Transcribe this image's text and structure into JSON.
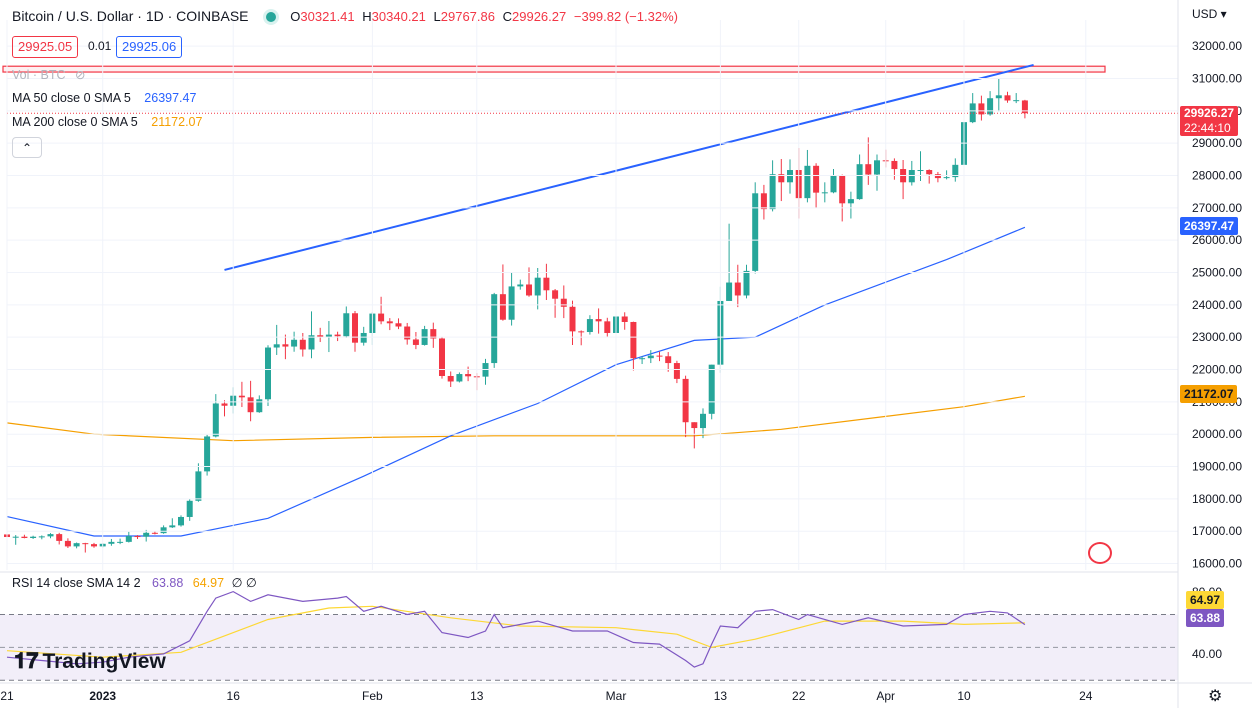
{
  "header": {
    "title": "Bitcoin / U.S. Dollar · 1D · COINBASE",
    "ohlc": [
      {
        "k": "O",
        "v": "30321.41"
      },
      {
        "k": "H",
        "v": "30340.21"
      },
      {
        "k": "L",
        "v": "29767.86"
      },
      {
        "k": "C",
        "v": "29926.27"
      }
    ],
    "change": "−399.82 (−1.32%)",
    "sell_price": "29925.05",
    "spread": "0.01",
    "buy_price": "29925.06"
  },
  "indicators": {
    "vol": "Vol · BTC",
    "ma50_label": "MA 50 close 0 SMA 5",
    "ma50_value": "26397.47",
    "ma200_label": "MA 200 close 0 SMA 5",
    "ma200_value": "21172.07",
    "collapse": "⌃",
    "rsi_label": "RSI 14 close SMA 14 2",
    "rsi_value": "63.88",
    "rsi_sma_value": "64.97",
    "rsi_extra": "∅  ∅"
  },
  "price_axis": {
    "currency": "USD",
    "last_price": "29926.27",
    "countdown": "22:44:10",
    "ma50_tag": "26397.47",
    "ma200_tag": "21172.07",
    "rsi_tick_top": "80.00",
    "rsi_tick_bottom": "40.00",
    "rsi_tag": "63.88",
    "rsi_sma_tag": "64.97"
  },
  "branding": {
    "logo_text": "TradingView"
  },
  "colors": {
    "up": "#26a69a",
    "down": "#f23645",
    "ma50": "#2962ff",
    "ma200": "#f59f00",
    "trendline": "#2962ff",
    "rsi": "#7e57c2",
    "rsi_sma": "#fdd835",
    "resistance": "#f23645"
  },
  "chart_data": {
    "type": "candlestick",
    "title": "Bitcoin / U.S. Dollar · 1D · COINBASE",
    "ylim": [
      15800,
      32500
    ],
    "y_ticks": [
      16000,
      17000,
      18000,
      19000,
      20000,
      21000,
      22000,
      23000,
      24000,
      25000,
      26000,
      27000,
      28000,
      29000,
      30000,
      31000,
      32000
    ],
    "x_ticks": [
      {
        "date": "2022-12-21",
        "label": "21"
      },
      {
        "date": "2023-01-01",
        "label": "2023"
      },
      {
        "date": "2023-01-16",
        "label": "16"
      },
      {
        "date": "2023-02-01",
        "label": "Feb"
      },
      {
        "date": "2023-02-13",
        "label": "13"
      },
      {
        "date": "2023-03-01",
        "label": "Mar"
      },
      {
        "date": "2023-03-13",
        "label": "13"
      },
      {
        "date": "2023-03-22",
        "label": "22"
      },
      {
        "date": "2023-04-01",
        "label": "Apr"
      },
      {
        "date": "2023-04-10",
        "label": "10"
      },
      {
        "date": "2023-04-24",
        "label": "24"
      }
    ],
    "x_start": "2022-12-21",
    "ohlc": [
      [
        "2022-12-21",
        16900,
        16930,
        16790,
        16820
      ],
      [
        "2022-12-22",
        16820,
        16880,
        16580,
        16830
      ],
      [
        "2022-12-23",
        16830,
        16890,
        16780,
        16790
      ],
      [
        "2022-12-24",
        16790,
        16860,
        16760,
        16830
      ],
      [
        "2022-12-25",
        16830,
        16870,
        16750,
        16840
      ],
      [
        "2022-12-26",
        16840,
        16940,
        16780,
        16910
      ],
      [
        "2022-12-27",
        16910,
        16950,
        16590,
        16700
      ],
      [
        "2022-12-28",
        16700,
        16780,
        16480,
        16530
      ],
      [
        "2022-12-29",
        16530,
        16650,
        16470,
        16630
      ],
      [
        "2022-12-30",
        16630,
        16640,
        16340,
        16600
      ],
      [
        "2022-12-31",
        16600,
        16640,
        16490,
        16530
      ],
      [
        "2023-01-01",
        16530,
        16630,
        16500,
        16610
      ],
      [
        "2023-01-02",
        16610,
        16760,
        16550,
        16670
      ],
      [
        "2023-01-03",
        16670,
        16770,
        16600,
        16670
      ],
      [
        "2023-01-04",
        16670,
        16980,
        16650,
        16850
      ],
      [
        "2023-01-05",
        16850,
        16880,
        16760,
        16830
      ],
      [
        "2023-01-06",
        16830,
        17040,
        16680,
        16950
      ],
      [
        "2023-01-07",
        16950,
        16990,
        16900,
        16940
      ],
      [
        "2023-01-08",
        16940,
        17180,
        16920,
        17120
      ],
      [
        "2023-01-09",
        17120,
        17400,
        17100,
        17180
      ],
      [
        "2023-01-10",
        17180,
        17490,
        17140,
        17440
      ],
      [
        "2023-01-11",
        17440,
        17990,
        17320,
        17940
      ],
      [
        "2023-01-12",
        17940,
        19100,
        17910,
        18850
      ],
      [
        "2023-01-13",
        18850,
        19980,
        18720,
        19930
      ],
      [
        "2023-01-14",
        19930,
        21240,
        19900,
        20950
      ],
      [
        "2023-01-15",
        20950,
        21050,
        20550,
        20880
      ],
      [
        "2023-01-16",
        20880,
        21450,
        20640,
        21190
      ],
      [
        "2023-01-17",
        21190,
        21620,
        20840,
        21140
      ],
      [
        "2023-01-18",
        21140,
        21650,
        20400,
        20680
      ],
      [
        "2023-01-19",
        20680,
        21200,
        20660,
        21080
      ],
      [
        "2023-01-20",
        21080,
        22750,
        20870,
        22680
      ],
      [
        "2023-01-21",
        22680,
        23380,
        22450,
        22780
      ],
      [
        "2023-01-22",
        22780,
        23080,
        22320,
        22710
      ],
      [
        "2023-01-23",
        22710,
        23170,
        22550,
        22920
      ],
      [
        "2023-01-24",
        22920,
        23130,
        22400,
        22620
      ],
      [
        "2023-01-25",
        22620,
        23800,
        22350,
        23060
      ],
      [
        "2023-01-26",
        23060,
        23290,
        22850,
        23010
      ],
      [
        "2023-01-27",
        23010,
        23500,
        22540,
        23080
      ],
      [
        "2023-01-28",
        23080,
        23170,
        22880,
        23030
      ],
      [
        "2023-01-29",
        23030,
        23950,
        22980,
        23740
      ],
      [
        "2023-01-30",
        23740,
        23810,
        22550,
        22830
      ],
      [
        "2023-01-31",
        22830,
        23320,
        22740,
        23130
      ],
      [
        "2023-02-01",
        23130,
        23780,
        22760,
        23730
      ],
      [
        "2023-02-02",
        23730,
        24250,
        23400,
        23490
      ],
      [
        "2023-02-03",
        23490,
        23590,
        23220,
        23430
      ],
      [
        "2023-02-04",
        23430,
        23580,
        23250,
        23330
      ],
      [
        "2023-02-05",
        23330,
        23440,
        22770,
        22930
      ],
      [
        "2023-02-06",
        22930,
        23160,
        22630,
        22760
      ],
      [
        "2023-02-07",
        22760,
        23350,
        22740,
        23250
      ],
      [
        "2023-02-08",
        23250,
        23450,
        22670,
        22960
      ],
      [
        "2023-02-09",
        22960,
        23010,
        21720,
        21800
      ],
      [
        "2023-02-10",
        21800,
        21940,
        21460,
        21630
      ],
      [
        "2023-02-11",
        21630,
        21910,
        21600,
        21860
      ],
      [
        "2023-02-12",
        21860,
        22090,
        21640,
        21790
      ],
      [
        "2023-02-13",
        21790,
        21890,
        21360,
        21780
      ],
      [
        "2023-02-14",
        21780,
        22330,
        21530,
        22200
      ],
      [
        "2023-02-15",
        22200,
        24370,
        22050,
        24330
      ],
      [
        "2023-02-16",
        24330,
        25250,
        23510,
        23540
      ],
      [
        "2023-02-17",
        23540,
        24990,
        23360,
        24570
      ],
      [
        "2023-02-18",
        24570,
        24780,
        24470,
        24630
      ],
      [
        "2023-02-19",
        24630,
        25160,
        24250,
        24290
      ],
      [
        "2023-02-20",
        24290,
        25140,
        23860,
        24840
      ],
      [
        "2023-02-21",
        24840,
        25270,
        24150,
        24450
      ],
      [
        "2023-02-22",
        24450,
        24490,
        23600,
        24190
      ],
      [
        "2023-02-23",
        24190,
        24600,
        23590,
        23940
      ],
      [
        "2023-02-24",
        23940,
        24130,
        22760,
        23180
      ],
      [
        "2023-02-25",
        23180,
        23210,
        22750,
        23160
      ],
      [
        "2023-02-26",
        23160,
        23680,
        23080,
        23560
      ],
      [
        "2023-02-27",
        23560,
        23890,
        23110,
        23490
      ],
      [
        "2023-02-28",
        23490,
        23600,
        23020,
        23130
      ],
      [
        "2023-03-01",
        23130,
        23990,
        23030,
        23640
      ],
      [
        "2023-03-02",
        23640,
        23770,
        23230,
        23470
      ],
      [
        "2023-03-03",
        23470,
        23480,
        21970,
        22350
      ],
      [
        "2023-03-04",
        22350,
        22410,
        22170,
        22350
      ],
      [
        "2023-03-05",
        22350,
        22600,
        22200,
        22430
      ],
      [
        "2023-03-06",
        22430,
        22550,
        22260,
        22410
      ],
      [
        "2023-03-07",
        22410,
        22540,
        21930,
        22200
      ],
      [
        "2023-03-08",
        22200,
        22270,
        21580,
        21710
      ],
      [
        "2023-03-09",
        21710,
        21810,
        19910,
        20370
      ],
      [
        "2023-03-10",
        20370,
        20370,
        19560,
        20190
      ],
      [
        "2023-03-11",
        20190,
        20800,
        19880,
        20630
      ],
      [
        "2023-03-12",
        20630,
        22150,
        20460,
        22150
      ],
      [
        "2023-03-13",
        22150,
        24560,
        21900,
        24120
      ],
      [
        "2023-03-14",
        24120,
        26510,
        24120,
        24690
      ],
      [
        "2023-03-15",
        24690,
        25240,
        23930,
        24290
      ],
      [
        "2023-03-16",
        24290,
        25240,
        24200,
        25050
      ],
      [
        "2023-03-17",
        25050,
        27790,
        24970,
        27450
      ],
      [
        "2023-03-18",
        27450,
        27710,
        26640,
        26960
      ],
      [
        "2023-03-19",
        26960,
        28470,
        26890,
        28040
      ],
      [
        "2023-03-20",
        28040,
        28510,
        27210,
        27790
      ],
      [
        "2023-03-21",
        27790,
        28500,
        27440,
        28170
      ],
      [
        "2023-03-22",
        28170,
        28850,
        26670,
        27300
      ],
      [
        "2023-03-23",
        27300,
        28790,
        27170,
        28300
      ],
      [
        "2023-03-24",
        28300,
        28380,
        27000,
        27470
      ],
      [
        "2023-03-25",
        27470,
        27790,
        27170,
        27480
      ],
      [
        "2023-03-26",
        27480,
        28200,
        27450,
        27990
      ],
      [
        "2023-03-27",
        27990,
        28030,
        26580,
        27140
      ],
      [
        "2023-03-28",
        27140,
        27500,
        26670,
        27270
      ],
      [
        "2023-03-29",
        27270,
        28650,
        27250,
        28350
      ],
      [
        "2023-03-30",
        28350,
        29180,
        27710,
        28030
      ],
      [
        "2023-03-31",
        28030,
        28650,
        27530,
        28470
      ],
      [
        "2023-04-01",
        28470,
        28800,
        28250,
        28450
      ],
      [
        "2023-04-02",
        28450,
        28530,
        27870,
        28200
      ],
      [
        "2023-04-03",
        28200,
        28480,
        27270,
        27790
      ],
      [
        "2023-04-04",
        27790,
        28450,
        27690,
        28170
      ],
      [
        "2023-04-05",
        28170,
        28750,
        27830,
        28170
      ],
      [
        "2023-04-06",
        28170,
        28190,
        27750,
        28040
      ],
      [
        "2023-04-07",
        28040,
        28110,
        27790,
        27920
      ],
      [
        "2023-04-08",
        27920,
        28160,
        27880,
        27950
      ],
      [
        "2023-04-09",
        27950,
        28530,
        27810,
        28330
      ],
      [
        "2023-04-10",
        28330,
        29770,
        28170,
        29650
      ],
      [
        "2023-04-11",
        29650,
        30550,
        29620,
        30230
      ],
      [
        "2023-04-12",
        30230,
        30470,
        29700,
        29890
      ],
      [
        "2023-04-13",
        29890,
        30610,
        29850,
        30390
      ],
      [
        "2023-04-14",
        30390,
        31000,
        29980,
        30480
      ],
      [
        "2023-04-15",
        30480,
        30590,
        30250,
        30320
      ],
      [
        "2023-04-16",
        30320,
        30550,
        30240,
        30330
      ],
      [
        "2023-04-17",
        30321.41,
        30340.21,
        29767.86,
        29926.27
      ]
    ],
    "ma50": [
      [
        "2022-12-21",
        17450
      ],
      [
        "2022-12-31",
        16850
      ],
      [
        "2023-01-10",
        16850
      ],
      [
        "2023-01-20",
        17400
      ],
      [
        "2023-01-31",
        18700
      ],
      [
        "2023-02-10",
        19950
      ],
      [
        "2023-02-20",
        20950
      ],
      [
        "2023-03-01",
        22150
      ],
      [
        "2023-03-10",
        22900
      ],
      [
        "2023-03-17",
        23000
      ],
      [
        "2023-03-25",
        24000
      ],
      [
        "2023-04-01",
        24700
      ],
      [
        "2023-04-08",
        25400
      ],
      [
        "2023-04-17",
        26397.47
      ]
    ],
    "ma200": [
      [
        "2022-12-21",
        20350
      ],
      [
        "2022-12-31",
        20000
      ],
      [
        "2023-01-16",
        19800
      ],
      [
        "2023-02-01",
        19900
      ],
      [
        "2023-02-15",
        19950
      ],
      [
        "2023-03-01",
        19950
      ],
      [
        "2023-03-10",
        19950
      ],
      [
        "2023-03-20",
        20150
      ],
      [
        "2023-04-01",
        20550
      ],
      [
        "2023-04-10",
        20850
      ],
      [
        "2023-04-17",
        21172.07
      ]
    ],
    "trendline": [
      [
        "2023-01-15",
        25080
      ],
      [
        "2023-04-18",
        31420
      ]
    ],
    "resistance": [
      31200,
      31380
    ],
    "rsi": {
      "ylim": [
        35,
        88
      ],
      "bands": [
        30,
        70
      ],
      "values": [
        [
          "2022-12-21",
          44
        ],
        [
          "2022-12-25",
          42
        ],
        [
          "2022-12-29",
          40
        ],
        [
          "2023-01-01",
          41
        ],
        [
          "2023-01-04",
          44
        ],
        [
          "2023-01-08",
          46
        ],
        [
          "2023-01-11",
          54
        ],
        [
          "2023-01-13",
          72
        ],
        [
          "2023-01-14",
          80
        ],
        [
          "2023-01-16",
          84
        ],
        [
          "2023-01-18",
          78
        ],
        [
          "2023-01-20",
          82
        ],
        [
          "2023-01-24",
          78
        ],
        [
          "2023-01-28",
          80
        ],
        [
          "2023-01-29",
          81
        ],
        [
          "2023-01-31",
          72
        ],
        [
          "2023-02-02",
          75
        ],
        [
          "2023-02-05",
          70
        ],
        [
          "2023-02-07",
          72
        ],
        [
          "2023-02-09",
          59
        ],
        [
          "2023-02-12",
          56
        ],
        [
          "2023-02-14",
          60
        ],
        [
          "2023-02-15",
          70
        ],
        [
          "2023-02-16",
          62
        ],
        [
          "2023-02-20",
          66
        ],
        [
          "2023-02-24",
          60
        ],
        [
          "2023-02-28",
          60
        ],
        [
          "2023-03-03",
          53
        ],
        [
          "2023-03-06",
          52
        ],
        [
          "2023-03-09",
          42
        ],
        [
          "2023-03-10",
          38
        ],
        [
          "2023-03-11",
          40
        ],
        [
          "2023-03-12",
          52
        ],
        [
          "2023-03-13",
          63
        ],
        [
          "2023-03-15",
          62
        ],
        [
          "2023-03-17",
          72
        ],
        [
          "2023-03-19",
          73
        ],
        [
          "2023-03-22",
          67
        ],
        [
          "2023-03-23",
          70
        ],
        [
          "2023-03-27",
          64
        ],
        [
          "2023-03-30",
          68
        ],
        [
          "2023-04-03",
          63
        ],
        [
          "2023-04-08",
          64
        ],
        [
          "2023-04-10",
          70
        ],
        [
          "2023-04-13",
          72
        ],
        [
          "2023-04-15",
          71
        ],
        [
          "2023-04-17",
          63.88
        ]
      ],
      "sma": [
        [
          "2022-12-21",
          48
        ],
        [
          "2023-01-01",
          44
        ],
        [
          "2023-01-10",
          47
        ],
        [
          "2023-01-20",
          67
        ],
        [
          "2023-01-27",
          74
        ],
        [
          "2023-02-01",
          75
        ],
        [
          "2023-02-10",
          68
        ],
        [
          "2023-02-18",
          63
        ],
        [
          "2023-03-01",
          62
        ],
        [
          "2023-03-08",
          58
        ],
        [
          "2023-03-12",
          50
        ],
        [
          "2023-03-17",
          55
        ],
        [
          "2023-03-25",
          66
        ],
        [
          "2023-04-03",
          66
        ],
        [
          "2023-04-10",
          64
        ],
        [
          "2023-04-17",
          64.97
        ]
      ]
    }
  }
}
